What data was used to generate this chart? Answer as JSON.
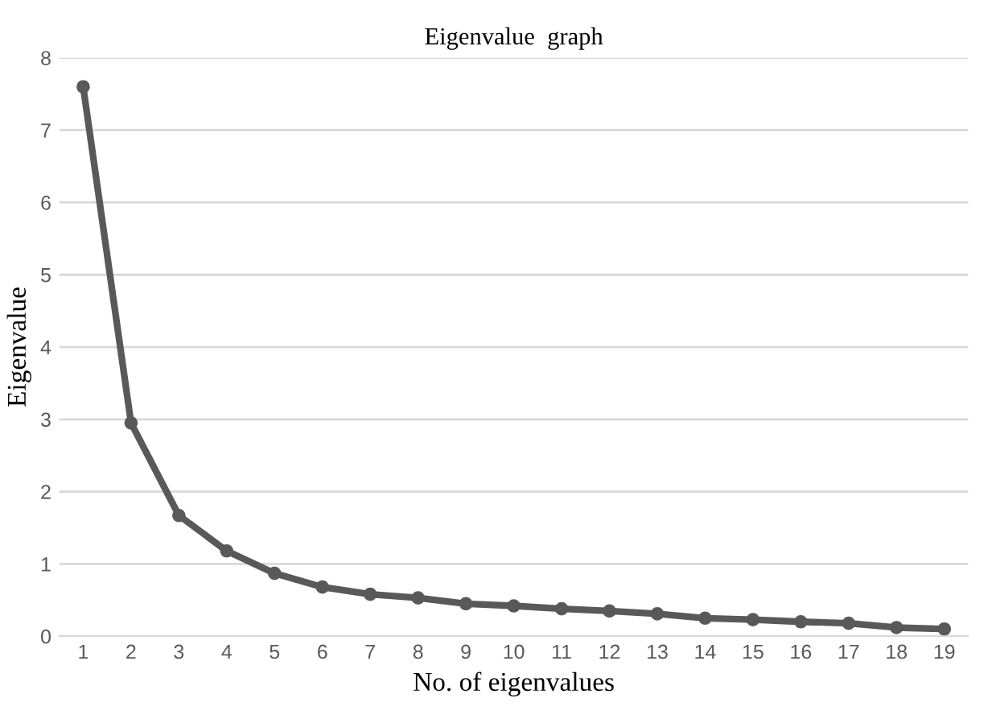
{
  "chart_data": {
    "type": "line",
    "title": "Eigenvalue  graph",
    "xlabel": "No. of eigenvalues",
    "ylabel": "Eigenvalue",
    "categories": [
      "1",
      "2",
      "3",
      "4",
      "5",
      "6",
      "7",
      "8",
      "9",
      "10",
      "11",
      "12",
      "13",
      "14",
      "15",
      "16",
      "17",
      "18",
      "19"
    ],
    "series": [
      {
        "color": "#595959",
        "values": [
          7.6,
          2.95,
          1.67,
          1.18,
          0.87,
          0.68,
          0.58,
          0.53,
          0.45,
          0.42,
          0.38,
          0.35,
          0.31,
          0.25,
          0.23,
          0.2,
          0.18,
          0.12,
          0.1
        ]
      }
    ],
    "ylim": [
      0,
      8
    ],
    "yticks": [
      0,
      1,
      2,
      3,
      4,
      5,
      6,
      7,
      8
    ],
    "grid": "y",
    "marker": "circle",
    "line_style": "solid",
    "legend": false
  }
}
